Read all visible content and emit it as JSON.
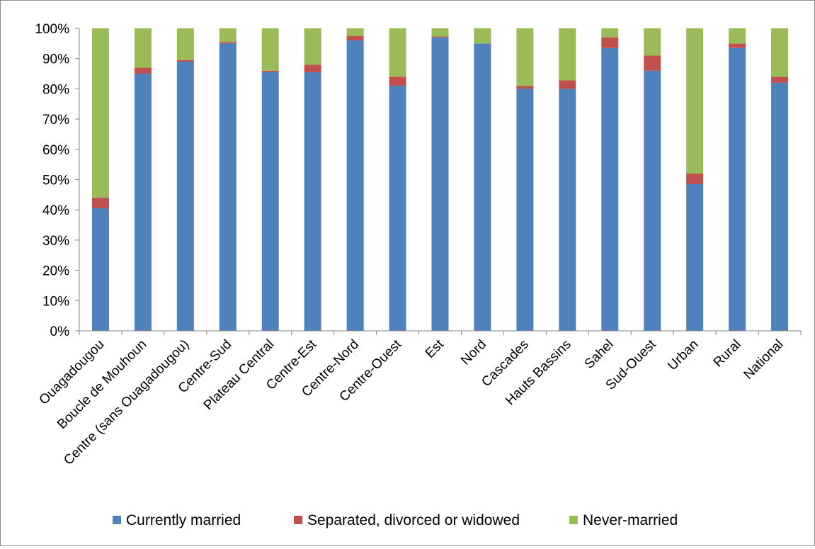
{
  "chart_data": {
    "type": "bar",
    "stacked": true,
    "percent": true,
    "title": "",
    "xlabel": "",
    "ylabel": "",
    "ylim": [
      0,
      100
    ],
    "yticks": [
      0,
      10,
      20,
      30,
      40,
      50,
      60,
      70,
      80,
      90,
      100
    ],
    "ytick_labels": [
      "0%",
      "10%",
      "20%",
      "30%",
      "40%",
      "50%",
      "60%",
      "70%",
      "80%",
      "90%",
      "100%"
    ],
    "grid": false,
    "legend_position": "bottom",
    "categories": [
      "Ouagadougou",
      "Boucle de Mouhoun",
      "Centre (sans Ouagadougou)",
      "Centre-Sud",
      "Plateau Central",
      "Centre-Est",
      "Centre-Nord",
      "Centre-Ouest",
      "Est",
      "Nord",
      "Cascades",
      "Hauts Bassins",
      "Sahel",
      "Sud-Ouest",
      "Urban",
      "Rural",
      "National"
    ],
    "series": [
      {
        "name": "Currently married",
        "color": "#4f81bd",
        "values": [
          40.5,
          85.0,
          89.0,
          95.0,
          85.5,
          85.5,
          96.0,
          81.0,
          97.0,
          95.0,
          80.0,
          80.0,
          93.5,
          86.0,
          48.5,
          93.5,
          82.0
        ]
      },
      {
        "name": "Separated, divorced or widowed",
        "color": "#c0504d",
        "values": [
          3.5,
          2.0,
          0.5,
          0.5,
          0.5,
          2.5,
          1.5,
          3.0,
          0.3,
          0.0,
          1.0,
          2.8,
          3.5,
          5.0,
          3.5,
          1.5,
          2.0
        ]
      },
      {
        "name": "Never-married",
        "color": "#9bbb59",
        "values": [
          56.0,
          13.0,
          10.5,
          4.5,
          14.0,
          12.0,
          2.5,
          16.0,
          2.7,
          5.0,
          19.0,
          17.2,
          3.0,
          9.0,
          48.0,
          5.0,
          16.0
        ]
      }
    ]
  }
}
